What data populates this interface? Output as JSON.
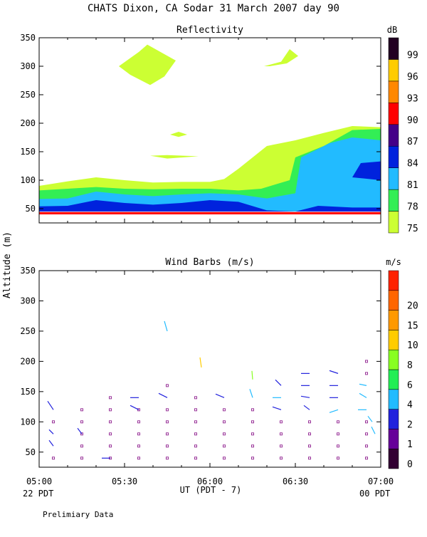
{
  "title": "CHATS Dixon, CA   Sodar  31 March 2007   day  90",
  "shared": {
    "y_axis_label": "Altitude (m)",
    "x_axis_label": "UT  (PDT - 7)",
    "left_date": "22 PDT",
    "right_date": "00 PDT",
    "footnote": "Prelimiary Data"
  },
  "colors": {
    "reflectivity_scale": [
      "#ccff33",
      "#33ee55",
      "#22bbff",
      "#0022dd",
      "#440088",
      "#ff0000",
      "#ff8800",
      "#ffcc00",
      "#220022"
    ],
    "wind_scale": [
      "#330033",
      "#660099",
      "#2222dd",
      "#22bbff",
      "#22ee55",
      "#88ff22",
      "#ffcc00",
      "#ff9900",
      "#ff6600",
      "#ff2200"
    ],
    "calm_marker": "#993399"
  },
  "chart_data": [
    {
      "type": "contour",
      "title": "Reflectivity",
      "colorbar_unit": "dB",
      "colorbar_levels": [
        "75",
        "78",
        "81",
        "84",
        "87",
        "90",
        "93",
        "96",
        "99"
      ],
      "x_tick_labels": [
        "05:00",
        "05:30",
        "06:00",
        "06:30",
        "07:00"
      ],
      "y_tick_labels": [
        "50",
        "100",
        "150",
        "200",
        "250",
        "300",
        "350"
      ],
      "xlim_minutes_after_0500": [
        0,
        120
      ],
      "ylim_m": [
        25,
        350
      ],
      "regions": [
        {
          "level": "75",
          "shape": "main band",
          "polygon": [
            [
              0,
              90
            ],
            [
              10,
              98
            ],
            [
              20,
              105
            ],
            [
              30,
              100
            ],
            [
              40,
              96
            ],
            [
              50,
              97
            ],
            [
              60,
              97
            ],
            [
              65,
              102
            ],
            [
              70,
              120
            ],
            [
              75,
              140
            ],
            [
              80,
              160
            ],
            [
              90,
              170
            ],
            [
              100,
              183
            ],
            [
              110,
              195
            ],
            [
              120,
              193
            ],
            [
              120,
              45
            ],
            [
              0,
              45
            ]
          ]
        },
        {
          "level": "75",
          "shape": "upper patch",
          "polygon": [
            [
              28,
              300
            ],
            [
              35,
              325
            ],
            [
              38,
              338
            ],
            [
              48,
              310
            ],
            [
              44,
              282
            ],
            [
              39,
              267
            ],
            [
              32,
              285
            ]
          ]
        },
        {
          "level": "75",
          "shape": "upper patch",
          "polygon": [
            [
              79,
              300
            ],
            [
              85,
              308
            ],
            [
              88,
              330
            ],
            [
              91,
              318
            ],
            [
              87,
              305
            ],
            [
              81,
              300
            ]
          ]
        },
        {
          "level": "75",
          "shape": "thin patch",
          "polygon": [
            [
              39,
              143
            ],
            [
              45,
              144
            ],
            [
              56,
              142
            ],
            [
              45,
              138
            ]
          ]
        },
        {
          "level": "75",
          "shape": "thin patch",
          "polygon": [
            [
              46,
              180
            ],
            [
              49,
              185
            ],
            [
              52,
              180
            ],
            [
              49,
              176
            ]
          ]
        },
        {
          "level": "78",
          "shape": "main band",
          "polygon": [
            [
              0,
              82
            ],
            [
              10,
              85
            ],
            [
              20,
              88
            ],
            [
              30,
              85
            ],
            [
              40,
              84
            ],
            [
              50,
              85
            ],
            [
              60,
              85
            ],
            [
              70,
              82
            ],
            [
              78,
              85
            ],
            [
              88,
              100
            ],
            [
              90,
              140
            ],
            [
              100,
              160
            ],
            [
              110,
              188
            ],
            [
              120,
              190
            ],
            [
              120,
              45
            ],
            [
              0,
              45
            ]
          ]
        },
        {
          "level": "81",
          "shape": "main band",
          "polygon": [
            [
              0,
              67
            ],
            [
              10,
              68
            ],
            [
              20,
              80
            ],
            [
              30,
              75
            ],
            [
              40,
              72
            ],
            [
              50,
              75
            ],
            [
              60,
              77
            ],
            [
              70,
              75
            ],
            [
              80,
              68
            ],
            [
              90,
              77
            ],
            [
              92,
              140
            ],
            [
              102,
              165
            ],
            [
              110,
              175
            ],
            [
              120,
              170
            ],
            [
              120,
              45
            ],
            [
              0,
              45
            ]
          ]
        },
        {
          "level": "84",
          "shape": "main band",
          "polygon": [
            [
              0,
              54
            ],
            [
              10,
              55
            ],
            [
              20,
              65
            ],
            [
              30,
              60
            ],
            [
              40,
              57
            ],
            [
              50,
              60
            ],
            [
              60,
              65
            ],
            [
              70,
              62
            ],
            [
              80,
              47
            ],
            [
              90,
              45
            ],
            [
              98,
              55
            ],
            [
              110,
              52
            ],
            [
              120,
              52
            ],
            [
              120,
              45
            ],
            [
              0,
              45
            ]
          ]
        },
        {
          "level": "84",
          "shape": "right lobe",
          "polygon": [
            [
              110,
              105
            ],
            [
              113,
              130
            ],
            [
              120,
              133
            ],
            [
              120,
              100
            ]
          ]
        },
        {
          "level": "90",
          "shape": "bottom edge",
          "polygon": [
            [
              0,
              40
            ],
            [
              120,
              40
            ],
            [
              120,
              44
            ],
            [
              0,
              44
            ]
          ]
        }
      ]
    },
    {
      "type": "wind-barbs",
      "title": "Wind Barbs (m/s)",
      "colorbar_unit": "m/s",
      "colorbar_levels": [
        "0",
        "1",
        "2",
        "4",
        "6",
        "8",
        "10",
        "15",
        "20"
      ],
      "x_tick_labels": [
        "05:00",
        "05:30",
        "06:00",
        "06:30",
        "07:00"
      ],
      "y_tick_labels": [
        "50",
        "100",
        "150",
        "200",
        "250",
        "300",
        "350"
      ],
      "xlim_minutes_after_0500": [
        0,
        120
      ],
      "ylim_m": [
        25,
        350
      ],
      "calm_points": [
        [
          5,
          40
        ],
        [
          5,
          100
        ],
        [
          15,
          40
        ],
        [
          15,
          60
        ],
        [
          15,
          80
        ],
        [
          15,
          100
        ],
        [
          15,
          120
        ],
        [
          25,
          40
        ],
        [
          25,
          60
        ],
        [
          25,
          80
        ],
        [
          25,
          100
        ],
        [
          25,
          120
        ],
        [
          25,
          140
        ],
        [
          35,
          40
        ],
        [
          35,
          60
        ],
        [
          35,
          80
        ],
        [
          35,
          100
        ],
        [
          35,
          120
        ],
        [
          45,
          40
        ],
        [
          45,
          60
        ],
        [
          45,
          80
        ],
        [
          45,
          100
        ],
        [
          45,
          120
        ],
        [
          45,
          160
        ],
        [
          55,
          40
        ],
        [
          55,
          60
        ],
        [
          55,
          80
        ],
        [
          55,
          100
        ],
        [
          55,
          120
        ],
        [
          55,
          140
        ],
        [
          65,
          40
        ],
        [
          65,
          60
        ],
        [
          65,
          80
        ],
        [
          65,
          100
        ],
        [
          65,
          120
        ],
        [
          75,
          40
        ],
        [
          75,
          60
        ],
        [
          75,
          80
        ],
        [
          75,
          100
        ],
        [
          75,
          120
        ],
        [
          85,
          40
        ],
        [
          85,
          60
        ],
        [
          85,
          80
        ],
        [
          85,
          100
        ],
        [
          95,
          40
        ],
        [
          95,
          60
        ],
        [
          95,
          80
        ],
        [
          95,
          100
        ],
        [
          105,
          40
        ],
        [
          105,
          60
        ],
        [
          105,
          80
        ],
        [
          105,
          100
        ],
        [
          115,
          40
        ],
        [
          115,
          60
        ],
        [
          115,
          80
        ],
        [
          115,
          100
        ],
        [
          115,
          180
        ],
        [
          115,
          200
        ]
      ],
      "barbs": [
        {
          "t": 5,
          "z": 120,
          "speed": 1,
          "dx": -8,
          "dy": -12
        },
        {
          "t": 5,
          "z": 80,
          "speed": 1,
          "dx": -6,
          "dy": -6
        },
        {
          "t": 5,
          "z": 60,
          "speed": 1,
          "dx": -6,
          "dy": -8
        },
        {
          "t": 15,
          "z": 80,
          "speed": 1,
          "dx": -6,
          "dy": -8
        },
        {
          "t": 25,
          "z": 40,
          "speed": 1,
          "dx": -12,
          "dy": 0
        },
        {
          "t": 35,
          "z": 140,
          "speed": 1,
          "dx": -12,
          "dy": 0
        },
        {
          "t": 35,
          "z": 120,
          "speed": 1,
          "dx": -12,
          "dy": -6
        },
        {
          "t": 45,
          "z": 140,
          "speed": 1,
          "dx": -12,
          "dy": -6
        },
        {
          "t": 45,
          "z": 250,
          "speed": 2,
          "dx": -4,
          "dy": -14
        },
        {
          "t": 57,
          "z": 190,
          "speed": 8,
          "dx": -2,
          "dy": -14
        },
        {
          "t": 65,
          "z": 140,
          "speed": 1,
          "dx": -12,
          "dy": -5
        },
        {
          "t": 75,
          "z": 140,
          "speed": 2,
          "dx": -4,
          "dy": -12
        },
        {
          "t": 75,
          "z": 170,
          "speed": 6,
          "dx": -1,
          "dy": -12
        },
        {
          "t": 85,
          "z": 140,
          "speed": 2,
          "dx": -12,
          "dy": 0
        },
        {
          "t": 85,
          "z": 120,
          "speed": 1,
          "dx": -12,
          "dy": -4
        },
        {
          "t": 85,
          "z": 160,
          "speed": 1,
          "dx": -8,
          "dy": -8
        },
        {
          "t": 95,
          "z": 180,
          "speed": 1,
          "dx": -12,
          "dy": 0
        },
        {
          "t": 95,
          "z": 160,
          "speed": 1,
          "dx": -12,
          "dy": 0
        },
        {
          "t": 95,
          "z": 140,
          "speed": 1,
          "dx": -12,
          "dy": -2
        },
        {
          "t": 95,
          "z": 120,
          "speed": 1,
          "dx": -8,
          "dy": -6
        },
        {
          "t": 105,
          "z": 180,
          "speed": 1,
          "dx": -12,
          "dy": -4
        },
        {
          "t": 105,
          "z": 160,
          "speed": 1,
          "dx": -12,
          "dy": 0
        },
        {
          "t": 105,
          "z": 140,
          "speed": 1,
          "dx": -12,
          "dy": 0
        },
        {
          "t": 105,
          "z": 120,
          "speed": 2,
          "dx": -12,
          "dy": 4
        },
        {
          "t": 115,
          "z": 160,
          "speed": 2,
          "dx": -10,
          "dy": -2
        },
        {
          "t": 115,
          "z": 140,
          "speed": 2,
          "dx": -10,
          "dy": -6
        },
        {
          "t": 115,
          "z": 120,
          "speed": 2,
          "dx": -12,
          "dy": 0
        },
        {
          "t": 117,
          "z": 100,
          "speed": 2,
          "dx": -6,
          "dy": -8
        },
        {
          "t": 118,
          "z": 80,
          "speed": 2,
          "dx": -5,
          "dy": -10
        }
      ]
    }
  ]
}
